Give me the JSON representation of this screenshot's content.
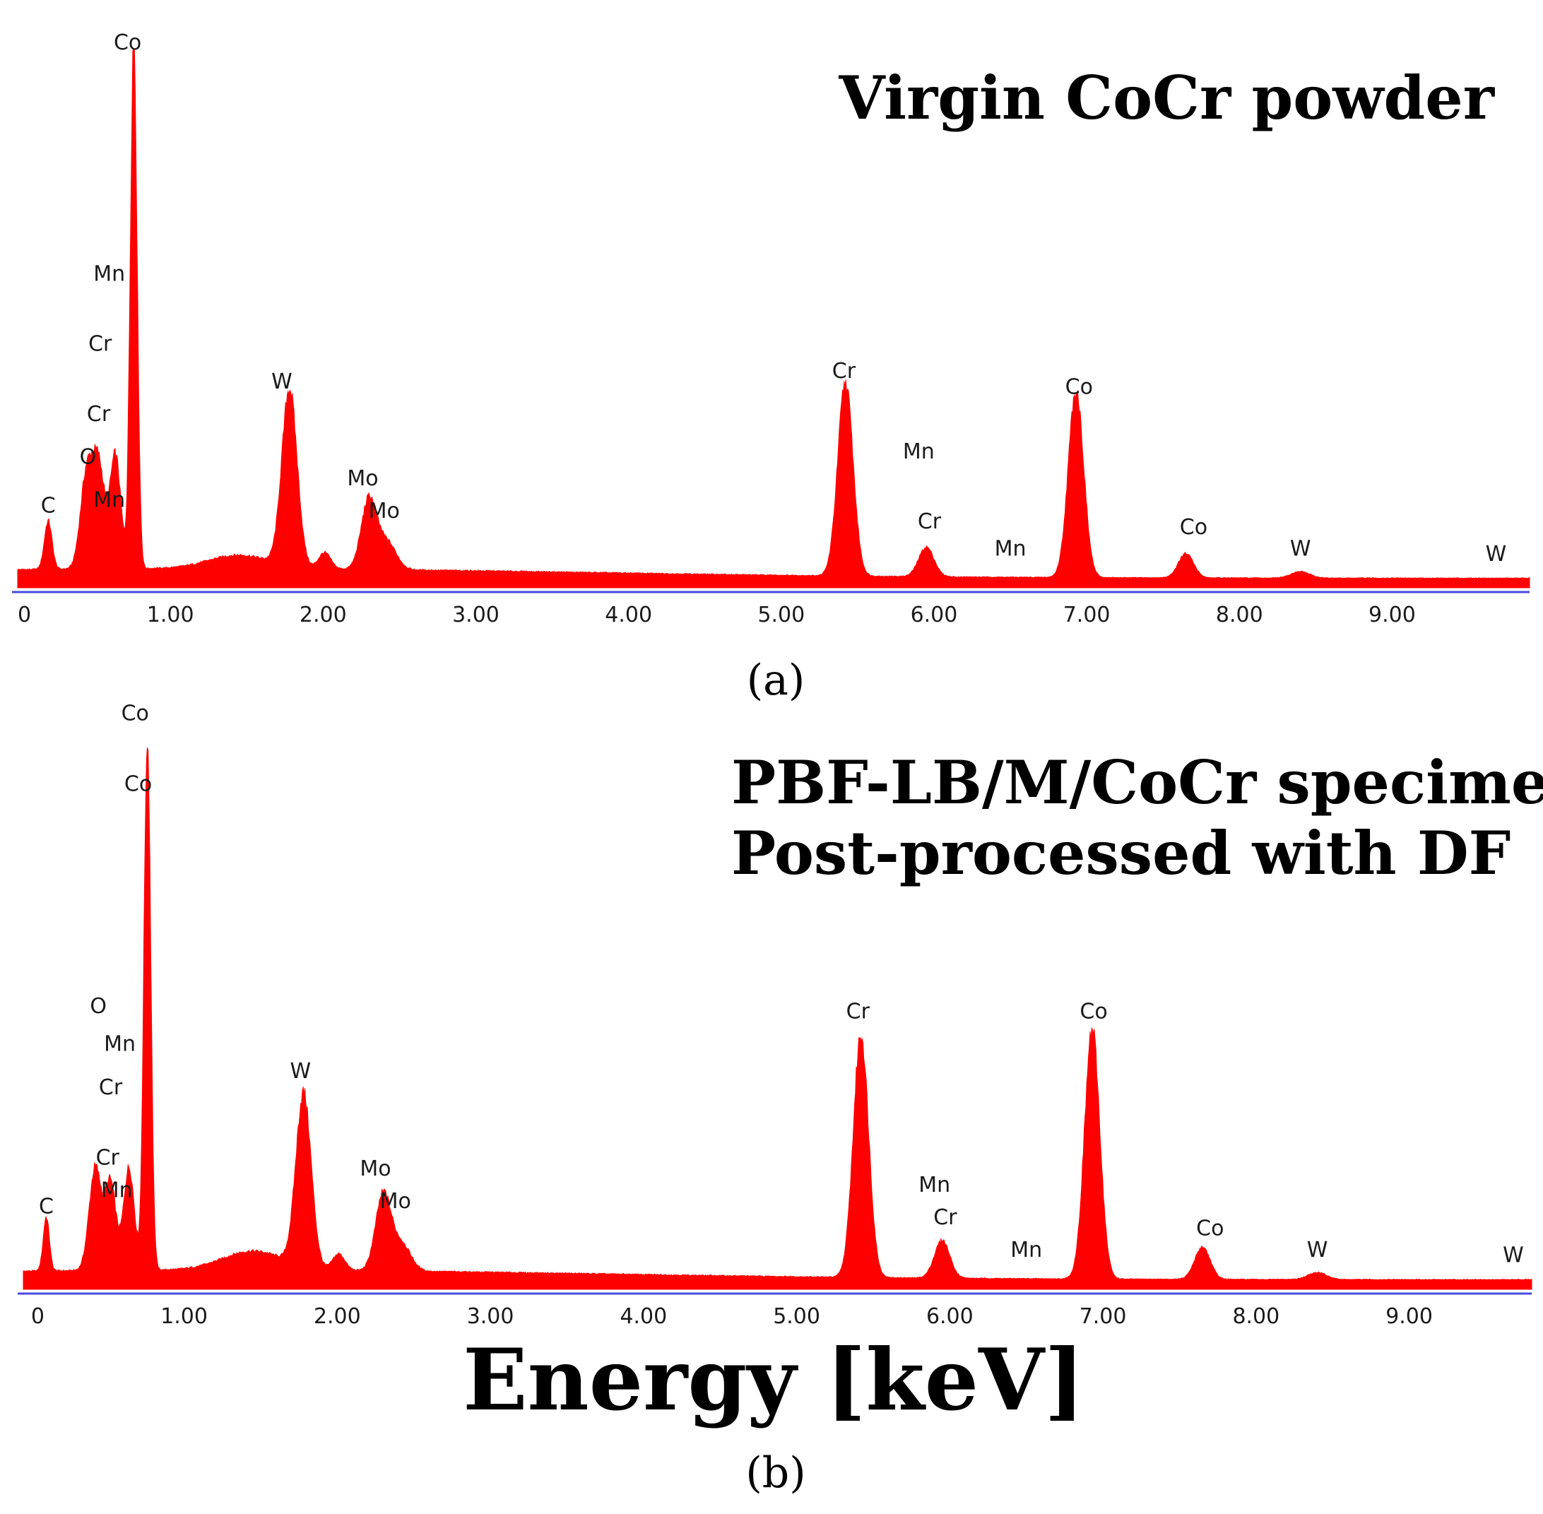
{
  "figure": {
    "caption_a": "(a)",
    "caption_b": "(b)",
    "xlabel": "Energy [keV]",
    "colors": {
      "spectrum": "#ff0000",
      "axis": "#4a4ae0",
      "text": "#000000"
    }
  },
  "chart_data": [
    {
      "type": "area",
      "title_lines": [
        "Virgin CoCr powder"
      ],
      "xlim": [
        0,
        9.9
      ],
      "ylim": [
        0,
        1.0
      ],
      "x_ticks": [
        "0",
        "1.00",
        "2.00",
        "3.00",
        "4.00",
        "5.00",
        "6.00",
        "7.00",
        "8.00",
        "9.00"
      ],
      "background": 0.03,
      "peaks": [
        {
          "x": 0.2,
          "y": 0.09,
          "w": 0.025
        },
        {
          "x": 0.45,
          "y": 0.17,
          "w": 0.04
        },
        {
          "x": 0.53,
          "y": 0.19,
          "w": 0.04
        },
        {
          "x": 0.64,
          "y": 0.21,
          "w": 0.035
        },
        {
          "x": 0.76,
          "y": 1.0,
          "w": 0.022
        },
        {
          "x": 1.45,
          "y": 0.025,
          "w": 0.2
        },
        {
          "x": 1.78,
          "y": 0.33,
          "w": 0.05
        },
        {
          "x": 2.01,
          "y": 0.03,
          "w": 0.04
        },
        {
          "x": 2.3,
          "y": 0.13,
          "w": 0.05
        },
        {
          "x": 2.42,
          "y": 0.05,
          "w": 0.06
        },
        {
          "x": 5.42,
          "y": 0.36,
          "w": 0.05
        },
        {
          "x": 5.95,
          "y": 0.055,
          "w": 0.05
        },
        {
          "x": 6.93,
          "y": 0.35,
          "w": 0.05
        },
        {
          "x": 7.65,
          "y": 0.045,
          "w": 0.05
        },
        {
          "x": 8.4,
          "y": 0.012,
          "w": 0.06
        }
      ],
      "peak_labels": [
        {
          "text": "Co",
          "x": 0.7,
          "y": 1.14
        },
        {
          "text": "Co",
          "x": 0.72,
          "y": 1.0
        },
        {
          "text": "Mn",
          "x": 0.6,
          "y": 0.57
        },
        {
          "text": "Cr",
          "x": 0.54,
          "y": 0.44
        },
        {
          "text": "W",
          "x": 1.73,
          "y": 0.37
        },
        {
          "text": "Cr",
          "x": 0.53,
          "y": 0.31
        },
        {
          "text": "O",
          "x": 0.46,
          "y": 0.23
        },
        {
          "text": "Mo",
          "x": 2.26,
          "y": 0.19
        },
        {
          "text": "C",
          "x": 0.2,
          "y": 0.14
        },
        {
          "text": "Mn",
          "x": 0.6,
          "y": 0.15
        },
        {
          "text": "Mo",
          "x": 2.4,
          "y": 0.13
        },
        {
          "text": "Cr",
          "x": 5.41,
          "y": 0.39
        },
        {
          "text": "Co",
          "x": 6.95,
          "y": 0.36
        },
        {
          "text": "Mn",
          "x": 5.9,
          "y": 0.24
        },
        {
          "text": "Cr",
          "x": 5.97,
          "y": 0.11
        },
        {
          "text": "Mn",
          "x": 6.5,
          "y": 0.06
        },
        {
          "text": "Co",
          "x": 7.7,
          "y": 0.1
        },
        {
          "text": "W",
          "x": 8.4,
          "y": 0.06
        },
        {
          "text": "W",
          "x": 9.68,
          "y": 0.05
        }
      ]
    },
    {
      "type": "area",
      "title_lines": [
        "PBF-LB/M/CoCr specimen",
        "Post-processed with DF"
      ],
      "xlim": [
        -0.05,
        9.8
      ],
      "ylim": [
        0,
        1.0
      ],
      "x_ticks": [
        "0",
        "1.00",
        "2.00",
        "3.00",
        "4.00",
        "5.00",
        "6.00",
        "7.00",
        "8.00",
        "9.00"
      ],
      "background": 0.03,
      "peaks": [
        {
          "x": 0.1,
          "y": 0.1,
          "w": 0.02
        },
        {
          "x": 0.42,
          "y": 0.19,
          "w": 0.04
        },
        {
          "x": 0.52,
          "y": 0.16,
          "w": 0.035
        },
        {
          "x": 0.64,
          "y": 0.19,
          "w": 0.035
        },
        {
          "x": 0.76,
          "y": 1.0,
          "w": 0.022
        },
        {
          "x": 1.45,
          "y": 0.035,
          "w": 0.2
        },
        {
          "x": 1.78,
          "y": 0.32,
          "w": 0.05
        },
        {
          "x": 2.01,
          "y": 0.03,
          "w": 0.04
        },
        {
          "x": 2.3,
          "y": 0.14,
          "w": 0.05
        },
        {
          "x": 2.42,
          "y": 0.05,
          "w": 0.06
        },
        {
          "x": 5.42,
          "y": 0.45,
          "w": 0.05
        },
        {
          "x": 5.95,
          "y": 0.07,
          "w": 0.05
        },
        {
          "x": 6.93,
          "y": 0.46,
          "w": 0.05
        },
        {
          "x": 7.65,
          "y": 0.06,
          "w": 0.05
        },
        {
          "x": 8.4,
          "y": 0.013,
          "w": 0.06
        }
      ],
      "peak_labels": [
        {
          "text": "Co",
          "x": 0.68,
          "y": 1.05
        },
        {
          "text": "Co",
          "x": 0.7,
          "y": 0.92
        },
        {
          "text": "O",
          "x": 0.44,
          "y": 0.51
        },
        {
          "text": "Mn",
          "x": 0.58,
          "y": 0.44
        },
        {
          "text": "W",
          "x": 1.76,
          "y": 0.39
        },
        {
          "text": "Cr",
          "x": 0.52,
          "y": 0.36
        },
        {
          "text": "Cr",
          "x": 0.5,
          "y": 0.23
        },
        {
          "text": "Mo",
          "x": 2.25,
          "y": 0.21
        },
        {
          "text": "Mn",
          "x": 0.56,
          "y": 0.17
        },
        {
          "text": "C",
          "x": 0.1,
          "y": 0.14
        },
        {
          "text": "Mo",
          "x": 2.38,
          "y": 0.15
        },
        {
          "text": "Cr",
          "x": 5.4,
          "y": 0.5
        },
        {
          "text": "Co",
          "x": 6.94,
          "y": 0.5
        },
        {
          "text": "Mn",
          "x": 5.9,
          "y": 0.18
        },
        {
          "text": "Cr",
          "x": 5.97,
          "y": 0.12
        },
        {
          "text": "Mn",
          "x": 6.5,
          "y": 0.06
        },
        {
          "text": "Co",
          "x": 7.7,
          "y": 0.1
        },
        {
          "text": "W",
          "x": 8.4,
          "y": 0.06
        },
        {
          "text": "W",
          "x": 9.68,
          "y": 0.05
        }
      ]
    }
  ]
}
